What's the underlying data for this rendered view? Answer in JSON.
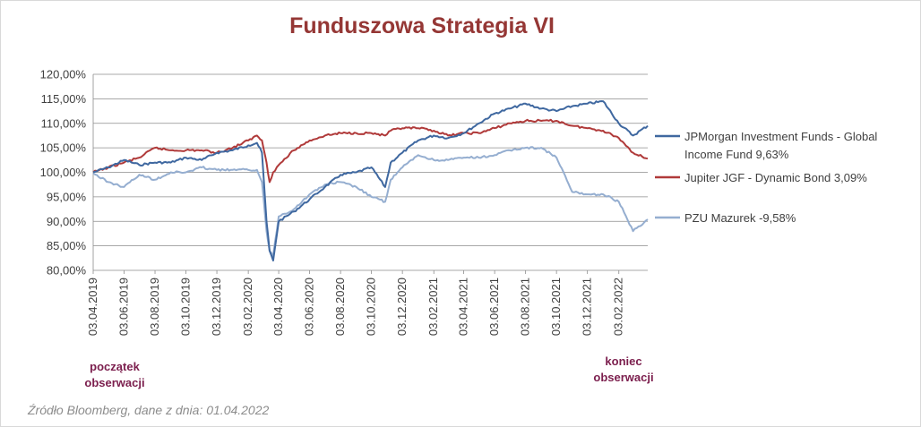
{
  "chart_data": {
    "type": "line",
    "title": "Funduszowa Strategia VI",
    "ylim": [
      80,
      120
    ],
    "y_ticks": [
      "80,00%",
      "85,00%",
      "90,00%",
      "95,00%",
      "100,00%",
      "105,00%",
      "110,00%",
      "115,00%",
      "120,00%"
    ],
    "x_ticks": [
      "03.04.2019",
      "03.06.2019",
      "03.08.2019",
      "03.10.2019",
      "03.12.2019",
      "03.02.2020",
      "03.04.2020",
      "03.06.2020",
      "03.08.2020",
      "03.10.2020",
      "03.12.2020",
      "03.02.2021",
      "03.04.2021",
      "03.06.2021",
      "03.08.2021",
      "03.10.2021",
      "03.12.2021",
      "03.02.2022"
    ],
    "grid": "horizontal",
    "legend": "right",
    "series": [
      {
        "name": "JPMorgan Investment Funds - Global Income Fund 9,63%",
        "color": "#3f68a0",
        "x": [
          "2019-04-03",
          "2019-05-03",
          "2019-06-03",
          "2019-07-03",
          "2019-08-03",
          "2019-09-03",
          "2019-10-03",
          "2019-11-03",
          "2019-12-03",
          "2020-01-03",
          "2020-02-03",
          "2020-02-20",
          "2020-03-01",
          "2020-03-10",
          "2020-03-16",
          "2020-03-23",
          "2020-04-03",
          "2020-05-03",
          "2020-06-03",
          "2020-07-03",
          "2020-08-03",
          "2020-09-03",
          "2020-10-03",
          "2020-10-30",
          "2020-11-10",
          "2020-12-03",
          "2021-01-03",
          "2021-02-03",
          "2021-03-03",
          "2021-04-03",
          "2021-05-03",
          "2021-06-03",
          "2021-07-03",
          "2021-08-03",
          "2021-09-03",
          "2021-10-03",
          "2021-11-03",
          "2021-12-03",
          "2022-01-03",
          "2022-02-03",
          "2022-03-03",
          "2022-04-01"
        ],
        "y": [
          100,
          101,
          102.5,
          101.5,
          102,
          102,
          103,
          102.5,
          104,
          104.5,
          105.5,
          106,
          104,
          90,
          84,
          82,
          90,
          92,
          94.5,
          97,
          99.5,
          100,
          101,
          97,
          102,
          104,
          106.5,
          107.5,
          107,
          108,
          110,
          112,
          113,
          114,
          113,
          112.5,
          113.5,
          114,
          114.5,
          110,
          107.5,
          109.5
        ]
      },
      {
        "name": "Jupiter JGF - Dynamic Bond 3,09%",
        "color": "#b03a3a",
        "x": [
          "2019-04-03",
          "2019-05-03",
          "2019-06-03",
          "2019-07-03",
          "2019-08-03",
          "2019-09-03",
          "2019-10-03",
          "2019-11-03",
          "2019-12-03",
          "2020-01-03",
          "2020-02-03",
          "2020-02-20",
          "2020-03-01",
          "2020-03-10",
          "2020-03-16",
          "2020-03-23",
          "2020-04-03",
          "2020-05-03",
          "2020-06-03",
          "2020-07-03",
          "2020-08-03",
          "2020-09-03",
          "2020-10-03",
          "2020-10-30",
          "2020-11-10",
          "2020-12-03",
          "2021-01-03",
          "2021-02-03",
          "2021-03-03",
          "2021-04-03",
          "2021-05-03",
          "2021-06-03",
          "2021-07-03",
          "2021-08-03",
          "2021-09-03",
          "2021-10-03",
          "2021-11-03",
          "2021-12-03",
          "2022-01-03",
          "2022-02-03",
          "2022-03-03",
          "2022-04-01"
        ],
        "y": [
          100,
          101,
          102,
          103,
          105,
          104.5,
          104.5,
          104.5,
          104,
          105,
          106.5,
          107.5,
          106.5,
          102,
          98,
          100,
          101.5,
          104.5,
          106.5,
          107.5,
          108,
          108,
          108,
          107.5,
          108.5,
          109,
          109,
          108.5,
          107.5,
          108,
          108,
          109,
          110,
          110.5,
          110.5,
          110.5,
          109.5,
          109,
          108.5,
          107,
          104,
          102.8
        ]
      },
      {
        "name": "PZU Mazurek -9,58%",
        "color": "#95aed0",
        "x": [
          "2019-04-03",
          "2019-05-03",
          "2019-06-03",
          "2019-07-03",
          "2019-08-03",
          "2019-09-03",
          "2019-10-03",
          "2019-11-03",
          "2019-12-03",
          "2020-01-03",
          "2020-02-03",
          "2020-02-20",
          "2020-03-01",
          "2020-03-10",
          "2020-03-16",
          "2020-03-23",
          "2020-04-03",
          "2020-05-03",
          "2020-06-03",
          "2020-07-03",
          "2020-08-03",
          "2020-09-03",
          "2020-10-03",
          "2020-10-30",
          "2020-11-10",
          "2020-12-03",
          "2021-01-03",
          "2021-02-03",
          "2021-03-03",
          "2021-04-03",
          "2021-05-03",
          "2021-06-03",
          "2021-07-03",
          "2021-08-03",
          "2021-09-03",
          "2021-10-03",
          "2021-11-03",
          "2021-12-03",
          "2022-01-03",
          "2022-02-03",
          "2022-03-03",
          "2022-04-01"
        ],
        "y": [
          99.8,
          98,
          97,
          99.5,
          98.5,
          100,
          100,
          101,
          100.5,
          100.5,
          100.5,
          100.5,
          98,
          88,
          84,
          83,
          91,
          92.5,
          95.5,
          97.5,
          98,
          97,
          95,
          94,
          98.5,
          101,
          103.5,
          102.5,
          102.5,
          103,
          103,
          103.5,
          104.5,
          105,
          105,
          103,
          96,
          95.5,
          95.5,
          94,
          88,
          90.4
        ]
      }
    ]
  },
  "legend": {
    "jpm": [
      "JPMorgan Investment Funds - Global",
      "Income Fund 9,63%"
    ],
    "jupiter": "Jupiter JGF - Dynamic Bond 3,09%",
    "pzu": "PZU Mazurek -9,58%"
  },
  "annotations": {
    "start": [
      "początek",
      "obserwacji"
    ],
    "end": [
      "koniec",
      "obserwacji"
    ]
  },
  "source": "Źródło Bloomberg, dane z dnia: 01.04.2022"
}
